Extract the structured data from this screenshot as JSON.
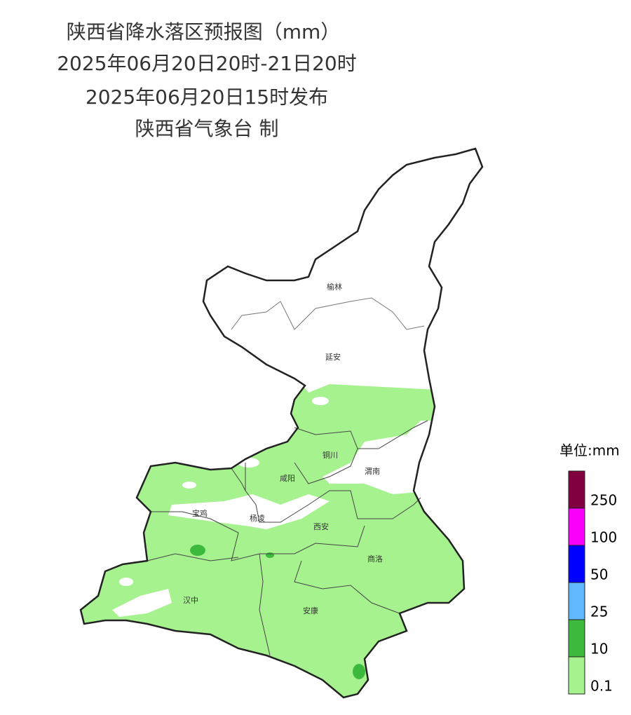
{
  "header": {
    "title": "陕西省降水落区预报图（mm）",
    "period": "2025年06月20日20时-21日20时",
    "issued": "2025年06月20日15时发布",
    "producer": "陕西省气象台 制"
  },
  "cities": [
    {
      "label": "榆林"
    },
    {
      "label": "延安"
    },
    {
      "label": "铜川"
    },
    {
      "label": "渭南"
    },
    {
      "label": "咸阳"
    },
    {
      "label": "宝鸡"
    },
    {
      "label": "杨凌"
    },
    {
      "label": "西安"
    },
    {
      "label": "商洛"
    },
    {
      "label": "汉中"
    },
    {
      "label": "安康"
    }
  ],
  "legend": {
    "title": "单位:mm",
    "items": [
      {
        "label": "0.1",
        "color": "#a6f28f"
      },
      {
        "label": "10",
        "color": "#3dba3d"
      },
      {
        "label": "25",
        "color": "#61b8ff"
      },
      {
        "label": "50",
        "color": "#0000ff"
      },
      {
        "label": "100",
        "color": "#fa00fa"
      },
      {
        "label": "250",
        "color": "#800040"
      }
    ]
  }
}
